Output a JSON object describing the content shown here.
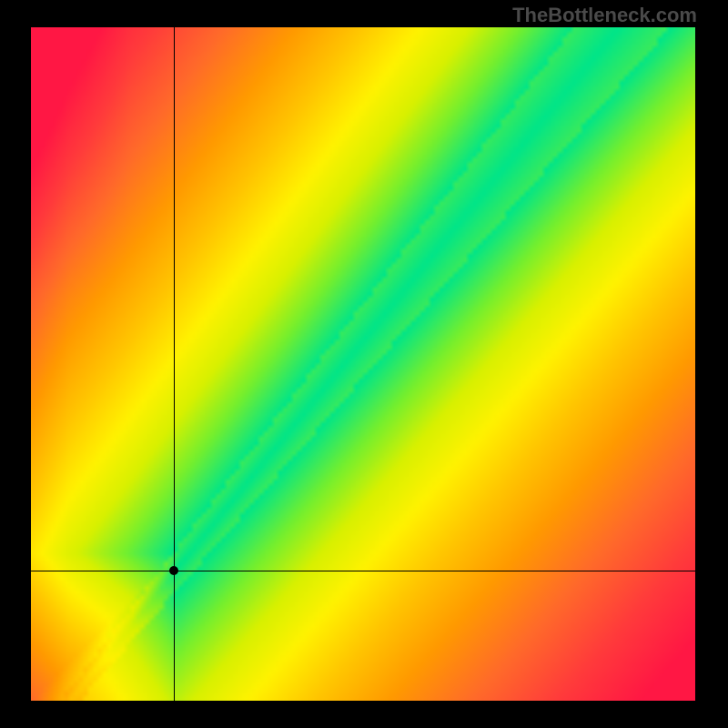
{
  "watermark": {
    "text": "TheBottleneck.com",
    "color": "#4a4a4a",
    "fontsize": 22,
    "fontweight": "bold",
    "fontfamily": "Arial"
  },
  "plot": {
    "type": "heatmap",
    "outer_width": 800,
    "outer_height": 800,
    "inner_x": 34,
    "inner_y": 30,
    "inner_width": 730,
    "inner_height": 740,
    "background_color": "#000000",
    "x_range": [
      0,
      1
    ],
    "y_range": [
      0,
      1
    ],
    "axis_crosshair": {
      "x": 0.215,
      "y": 0.193,
      "line_color": "#000000",
      "line_width": 1,
      "marker_color": "#000000",
      "marker_radius": 5
    },
    "ideal_line": {
      "description": "green optimal diagonal band widening toward top-right",
      "slope": 1.21,
      "intercept": -0.07,
      "base_halfwidth": 0.012,
      "growth": 0.085
    },
    "gradient": {
      "description": "distance-to-ideal drives hue; corners far from diagonal are redder, diagonal is green, transition through yellow/orange",
      "stops": [
        {
          "t": 0.0,
          "color": "#00e589"
        },
        {
          "t": 0.1,
          "color": "#72ef2f"
        },
        {
          "t": 0.2,
          "color": "#d8f000"
        },
        {
          "t": 0.3,
          "color": "#fff200"
        },
        {
          "t": 0.42,
          "color": "#ffc500"
        },
        {
          "t": 0.55,
          "color": "#ff9a00"
        },
        {
          "t": 0.7,
          "color": "#ff6a2a"
        },
        {
          "t": 0.85,
          "color": "#ff3b3b"
        },
        {
          "t": 1.0,
          "color": "#ff1744"
        }
      ],
      "bottom_left_tint": "#ff1744",
      "top_right_tint_shift": 0.35
    },
    "resolution": 140
  }
}
